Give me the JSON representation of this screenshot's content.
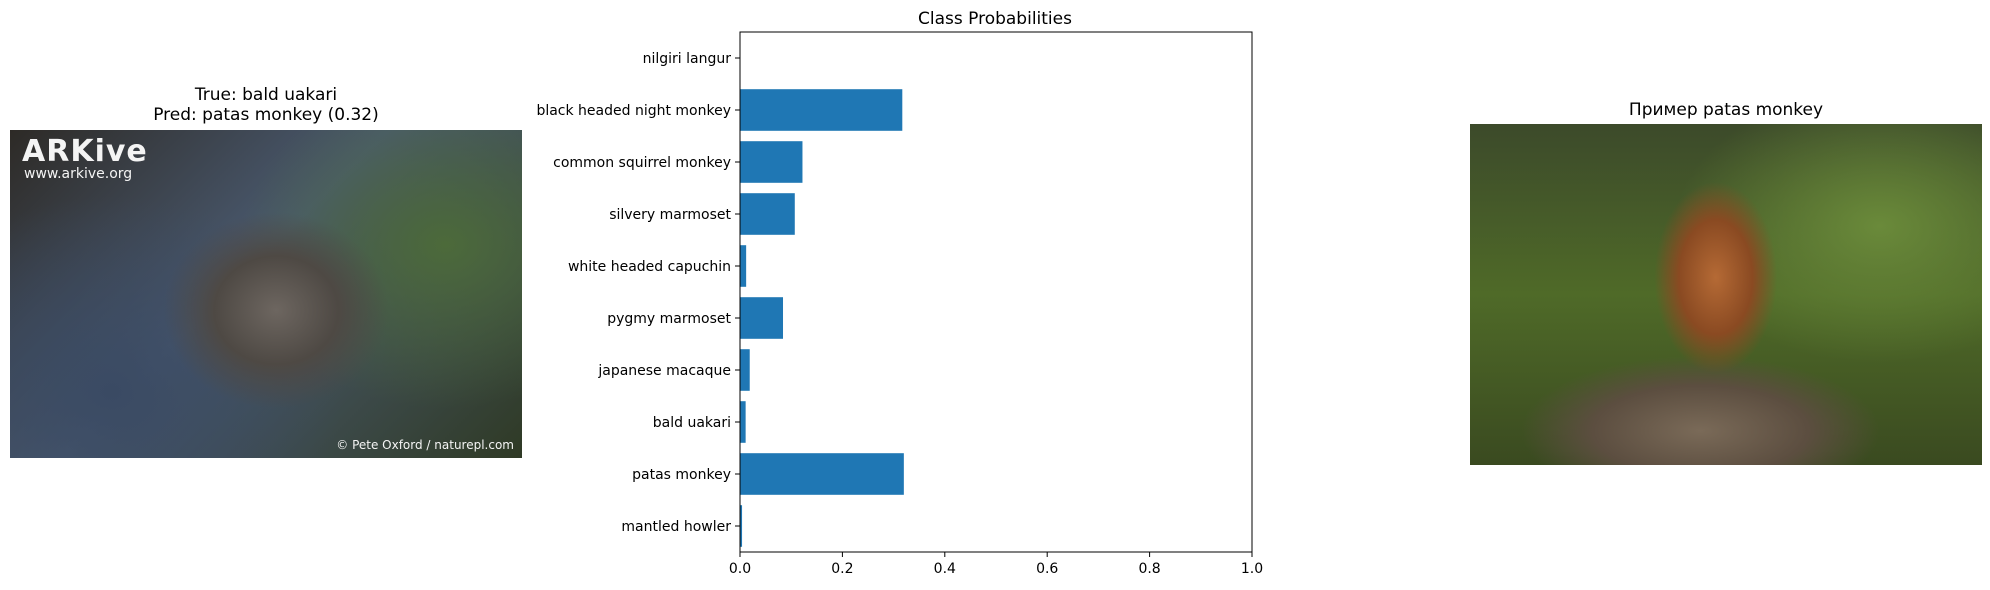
{
  "left_panel": {
    "title_line1": "True: bald uakari",
    "title_line2": "Pred: patas monkey (0.32)",
    "photo": {
      "watermark_logo": "ARKive",
      "watermark_url": "www.arkive.org",
      "credit": "© Pete Oxford / naturepl.com"
    }
  },
  "right_panel": {
    "title": "Пример patas monkey"
  },
  "chart_data": {
    "type": "bar",
    "orientation": "horizontal",
    "title": "Class Probabilities",
    "categories": [
      "nilgiri langur",
      "black headed night monkey",
      "common squirrel monkey",
      "silvery marmoset",
      "white headed capuchin",
      "pygmy marmoset",
      "japanese macaque",
      "bald uakari",
      "patas monkey",
      "mantled howler"
    ],
    "values": [
      0.0,
      0.317,
      0.122,
      0.107,
      0.012,
      0.084,
      0.019,
      0.011,
      0.32,
      0.004
    ],
    "xlim": [
      0,
      1
    ],
    "xticks": [
      "0.0",
      "0.2",
      "0.4",
      "0.6",
      "0.8",
      "1.0"
    ],
    "grid": false,
    "bar_color": "#1f77b4"
  }
}
